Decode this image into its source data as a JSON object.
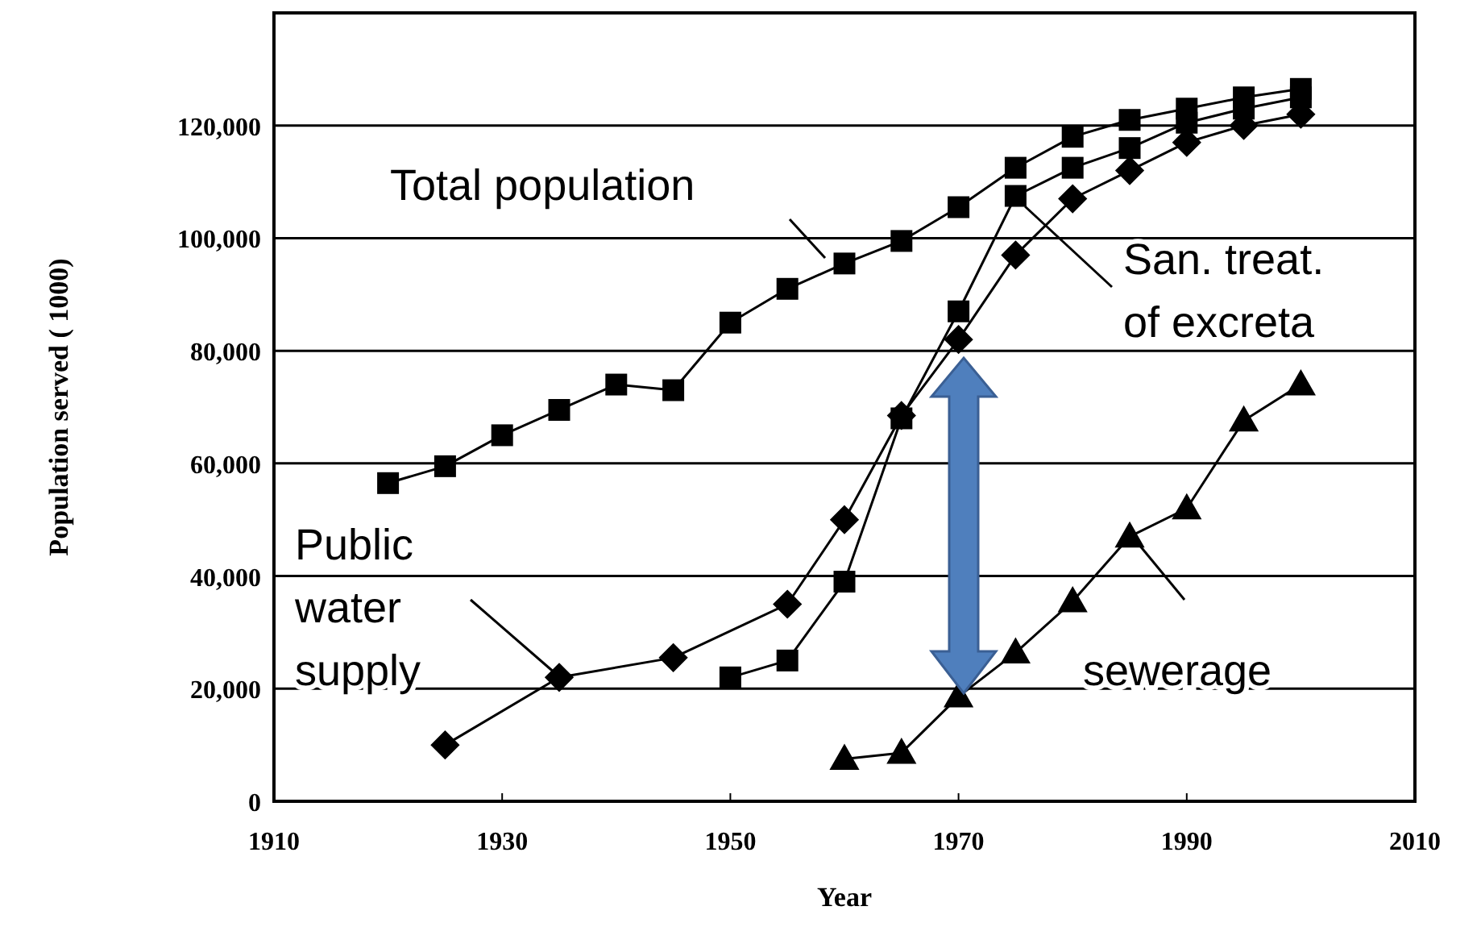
{
  "chart_data": {
    "type": "line",
    "xlabel": "Year",
    "ylabel": "Population served ( 1000)",
    "xlim": [
      1910,
      2010
    ],
    "xticks": [
      1910,
      1930,
      1950,
      1970,
      1990,
      2010
    ],
    "ylim": [
      0,
      140000
    ],
    "yticks": [
      {
        "value": 0,
        "label": "0"
      },
      {
        "value": 20000,
        "label": "20,000"
      },
      {
        "value": 40000,
        "label": "40,000"
      },
      {
        "value": 60000,
        "label": "60,000"
      },
      {
        "value": 80000,
        "label": "80,000"
      },
      {
        "value": 100000,
        "label": "100,000"
      },
      {
        "value": 120000,
        "label": "120,000"
      }
    ],
    "grid": "y",
    "line_style": "solid",
    "series": [
      {
        "name": "Total population",
        "color": "#000000",
        "marker": "square",
        "x": [
          1920,
          1925,
          1930,
          1935,
          1940,
          1945,
          1950,
          1955,
          1960,
          1965,
          1970,
          1975,
          1980,
          1985,
          1990,
          1995,
          2000
        ],
        "values": [
          56500,
          59500,
          65000,
          69500,
          74000,
          73000,
          85000,
          91000,
          95500,
          99500,
          105500,
          112500,
          118000,
          121000,
          123000,
          125000,
          126500
        ]
      },
      {
        "name": "San. treat. of excreta",
        "color": "#000000",
        "marker": "square",
        "x": [
          1950,
          1955,
          1960,
          1965,
          1970,
          1975,
          1980,
          1985,
          1990,
          1995,
          2000
        ],
        "values": [
          22000,
          25000,
          39000,
          68000,
          87000,
          107500,
          112500,
          116000,
          120500,
          123000,
          125000
        ]
      },
      {
        "name": "Public water supply",
        "color": "#000000",
        "marker": "diamond",
        "x": [
          1925,
          1935,
          1945,
          1955,
          1960,
          1965,
          1970,
          1975,
          1980,
          1985,
          1990,
          1995,
          2000
        ],
        "values": [
          10000,
          22000,
          25500,
          35000,
          50000,
          68500,
          82000,
          97000,
          107000,
          112000,
          117000,
          120000,
          122000
        ]
      },
      {
        "name": "sewerage",
        "color": "#000000",
        "marker": "triangle",
        "x": [
          1960,
          1965,
          1970,
          1975,
          1980,
          1985,
          1990,
          1995,
          2000
        ],
        "values": [
          7500,
          8600,
          18600,
          26400,
          35500,
          47000,
          52000,
          67600,
          74000
        ]
      }
    ]
  }
}
